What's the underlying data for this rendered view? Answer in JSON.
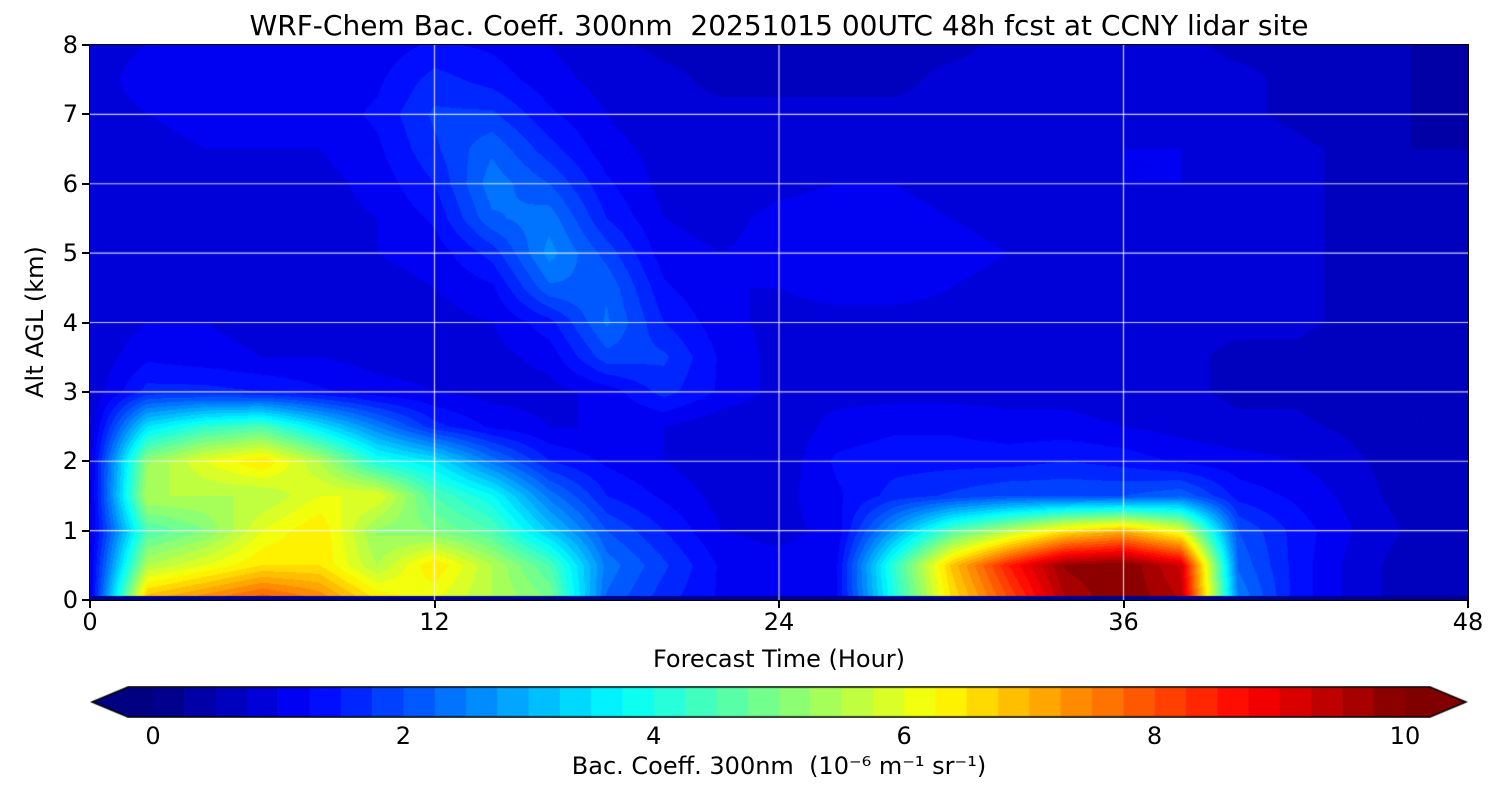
{
  "title": "WRF-Chem Bac. Coeff. 300nm  20251015 00UTC 48h fcst at CCNY lidar site",
  "chart_data": {
    "type": "heatmap",
    "title": "WRF-Chem Bac. Coeff. 300nm  20251015 00UTC 48h fcst at CCNY lidar site",
    "xlabel": "Forecast Time (Hour)",
    "ylabel": "Alt AGL (km)",
    "xlim": [
      0,
      48
    ],
    "ylim": [
      0,
      8
    ],
    "x_ticks": [
      0,
      12,
      24,
      36,
      48
    ],
    "y_ticks": [
      0,
      1,
      2,
      3,
      4,
      5,
      6,
      7,
      8
    ],
    "grid": true,
    "grid_color": "#ffffff",
    "colormap": "jet",
    "colorbar": {
      "label": "Bac. Coeff. 300nm  (10⁻⁶ m⁻¹ sr⁻¹)",
      "ticks": [
        0,
        2,
        4,
        6,
        8,
        10
      ],
      "range": [
        0,
        10
      ],
      "extend": "both",
      "level_step": 0.25
    },
    "x": [
      0,
      2,
      4,
      6,
      8,
      10,
      12,
      14,
      16,
      18,
      20,
      22,
      24,
      26,
      28,
      30,
      32,
      34,
      36,
      38,
      40,
      42,
      44,
      46,
      48
    ],
    "y": [
      0,
      0.5,
      1,
      1.5,
      2,
      2.5,
      3,
      3.5,
      4,
      4.5,
      5,
      5.5,
      6,
      6.5,
      7,
      7.5,
      8
    ],
    "values": [
      [
        1.0,
        7.0,
        7.5,
        8.0,
        7.5,
        6.5,
        6.0,
        5.5,
        5.0,
        2.2,
        1.6,
        1.2,
        1.1,
        1.2,
        4.0,
        6.5,
        8.0,
        9.5,
        10.0,
        9.5,
        2.5,
        1.4,
        0.9,
        0.6,
        0.5
      ],
      [
        1.0,
        5.5,
        6.0,
        6.5,
        6.5,
        5.5,
        6.5,
        5.5,
        4.5,
        2.4,
        1.8,
        1.2,
        1.1,
        1.2,
        4.2,
        6.8,
        8.5,
        9.8,
        10.0,
        9.2,
        2.2,
        1.4,
        0.9,
        0.6,
        0.5
      ],
      [
        0.9,
        4.5,
        5.0,
        6.0,
        6.5,
        5.2,
        5.0,
        4.5,
        3.2,
        2.0,
        1.5,
        1.0,
        0.9,
        1.1,
        2.8,
        4.5,
        5.5,
        6.5,
        7.0,
        6.0,
        2.0,
        1.4,
        1.0,
        0.7,
        0.5
      ],
      [
        0.9,
        5.5,
        5.5,
        5.5,
        6.0,
        6.0,
        4.5,
        3.8,
        2.4,
        1.5,
        1.2,
        0.9,
        0.9,
        1.2,
        1.6,
        1.8,
        2.0,
        2.0,
        2.0,
        2.2,
        1.4,
        1.2,
        0.9,
        0.6,
        0.5
      ],
      [
        0.9,
        5.2,
        6.0,
        6.5,
        5.5,
        4.0,
        3.5,
        2.4,
        1.5,
        1.2,
        1.0,
        0.8,
        0.8,
        1.3,
        1.4,
        1.4,
        1.4,
        1.5,
        1.4,
        1.2,
        1.1,
        1.0,
        0.8,
        0.6,
        0.5
      ],
      [
        0.8,
        3.5,
        4.2,
        4.5,
        3.5,
        2.5,
        1.6,
        1.2,
        1.0,
        1.0,
        1.0,
        0.8,
        0.8,
        1.1,
        1.2,
        1.2,
        1.1,
        1.1,
        1.0,
        0.9,
        0.8,
        0.8,
        0.7,
        0.5,
        0.5
      ],
      [
        0.8,
        1.6,
        1.6,
        1.5,
        1.3,
        1.1,
        1.0,
        0.9,
        0.9,
        1.1,
        1.6,
        1.2,
        0.9,
        0.9,
        0.9,
        0.9,
        0.9,
        0.9,
        0.8,
        0.8,
        0.7,
        0.7,
        0.6,
        0.5,
        0.5
      ],
      [
        0.8,
        1.2,
        1.1,
        1.0,
        1.0,
        0.9,
        0.9,
        0.9,
        1.1,
        1.9,
        1.8,
        1.2,
        0.9,
        0.8,
        0.8,
        0.8,
        0.8,
        0.8,
        0.8,
        0.8,
        0.7,
        0.7,
        0.6,
        0.5,
        0.5
      ],
      [
        0.8,
        1.0,
        1.0,
        0.9,
        0.9,
        0.9,
        0.9,
        1.0,
        1.4,
        2.3,
        1.5,
        1.1,
        0.9,
        0.9,
        0.9,
        0.9,
        0.8,
        0.8,
        0.8,
        0.8,
        0.8,
        0.8,
        0.7,
        0.6,
        0.5
      ],
      [
        0.8,
        0.9,
        0.9,
        0.9,
        0.9,
        0.9,
        1.0,
        1.2,
        2.2,
        2.2,
        1.3,
        1.0,
        1.0,
        1.1,
        1.1,
        1.0,
        0.9,
        0.9,
        0.9,
        0.9,
        0.8,
        0.8,
        0.7,
        0.6,
        0.5
      ],
      [
        0.8,
        0.9,
        0.9,
        0.9,
        0.9,
        1.0,
        1.1,
        1.6,
        2.6,
        1.9,
        1.1,
        1.0,
        1.1,
        1.2,
        1.2,
        1.1,
        1.0,
        0.9,
        0.9,
        0.9,
        0.8,
        0.8,
        0.7,
        0.6,
        0.5
      ],
      [
        0.8,
        0.9,
        0.9,
        0.9,
        0.9,
        1.0,
        1.3,
        2.2,
        2.4,
        1.5,
        1.0,
        0.9,
        1.1,
        1.2,
        1.1,
        1.0,
        0.9,
        0.9,
        0.9,
        0.9,
        0.9,
        0.8,
        0.7,
        0.6,
        0.5
      ],
      [
        0.8,
        0.9,
        0.9,
        0.9,
        0.9,
        1.1,
        1.5,
        2.4,
        2.0,
        1.3,
        0.9,
        0.8,
        0.9,
        1.0,
        1.0,
        0.9,
        0.9,
        0.9,
        1.0,
        1.0,
        0.9,
        0.8,
        0.7,
        0.6,
        0.5
      ],
      [
        0.8,
        0.9,
        1.0,
        1.0,
        1.0,
        1.2,
        1.7,
        2.2,
        1.6,
        1.1,
        0.9,
        0.8,
        0.8,
        0.9,
        0.9,
        0.9,
        0.9,
        0.9,
        1.0,
        1.0,
        0.9,
        0.8,
        0.7,
        0.5,
        0.5
      ],
      [
        0.9,
        1.0,
        1.1,
        1.1,
        1.1,
        1.3,
        1.8,
        1.8,
        1.3,
        1.0,
        0.8,
        0.8,
        0.8,
        0.8,
        0.8,
        0.8,
        0.8,
        0.9,
        0.9,
        0.9,
        0.8,
        0.7,
        0.6,
        0.5,
        0.4
      ],
      [
        0.9,
        1.1,
        1.2,
        1.2,
        1.1,
        1.2,
        1.6,
        1.4,
        1.1,
        0.9,
        0.8,
        0.7,
        0.7,
        0.7,
        0.7,
        0.8,
        0.8,
        0.8,
        0.8,
        0.8,
        0.8,
        0.7,
        0.6,
        0.5,
        0.4
      ],
      [
        0.9,
        1.0,
        1.1,
        1.1,
        1.0,
        1.1,
        1.3,
        1.2,
        1.0,
        0.8,
        0.7,
        0.7,
        0.7,
        0.7,
        0.7,
        0.7,
        0.8,
        0.8,
        0.8,
        0.8,
        0.7,
        0.7,
        0.6,
        0.5,
        0.4
      ]
    ]
  }
}
